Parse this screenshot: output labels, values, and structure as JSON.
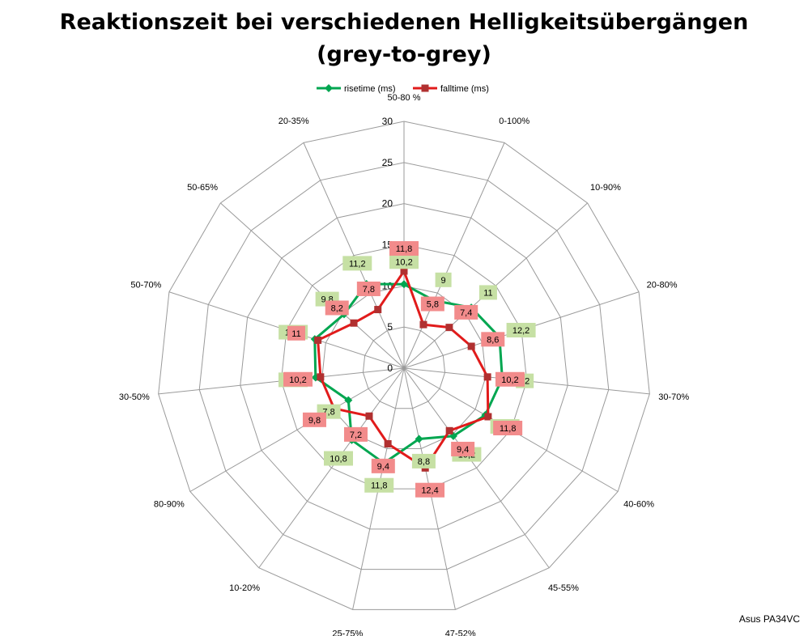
{
  "chart_data": {
    "type": "radar",
    "title_line1": "Reaktionszeit bei verschiedenen Helligkeitsübergängen",
    "title_line2": "(grey-to-grey)",
    "categories": [
      "50-80 %",
      "0-100%",
      "10-90%",
      "20-80%",
      "30-70%",
      "40-60%",
      "45-55%",
      "47-52%",
      "25-75%",
      "10-20%",
      "80-90%",
      "30-50%",
      "50-70%",
      "50-65%",
      "20-35%"
    ],
    "series": [
      {
        "name": "risetime (ms)",
        "color": "#00a650",
        "label_bg": "#c6e0a4",
        "values": [
          10.2,
          9,
          11,
          12.2,
          12,
          11.4,
          10.2,
          8.8,
          11.8,
          10.8,
          7.8,
          10.8,
          11.4,
          9.8,
          11.2
        ],
        "labels": [
          "10,2",
          "9",
          "11",
          "12,2",
          "12",
          "11,4",
          "10,2",
          "8,8",
          "11,8",
          "10,8",
          "7,8",
          "10,8",
          "11,4",
          "9,8",
          "11,2"
        ]
      },
      {
        "name": "falltime (ms)",
        "color": "#e11b1b",
        "label_bg": "#f28b8b",
        "values": [
          11.8,
          5.8,
          7.4,
          8.6,
          10.2,
          11.8,
          9.4,
          12.4,
          9.4,
          7.2,
          9.8,
          10.2,
          11,
          8.2,
          7.8
        ],
        "labels": [
          "11,8",
          "5,8",
          "7,4",
          "8,6",
          "10,2",
          "11,8",
          "9,4",
          "12,4",
          "9,4",
          "7,2",
          "9,8",
          "10,2",
          "11",
          "8,2",
          "7,8"
        ]
      }
    ],
    "rlim": [
      0,
      30
    ],
    "rticks": [
      0,
      5,
      10,
      15,
      20,
      25,
      30
    ],
    "grid": true,
    "legend": "top"
  },
  "watermark": "Asus PA34VC"
}
